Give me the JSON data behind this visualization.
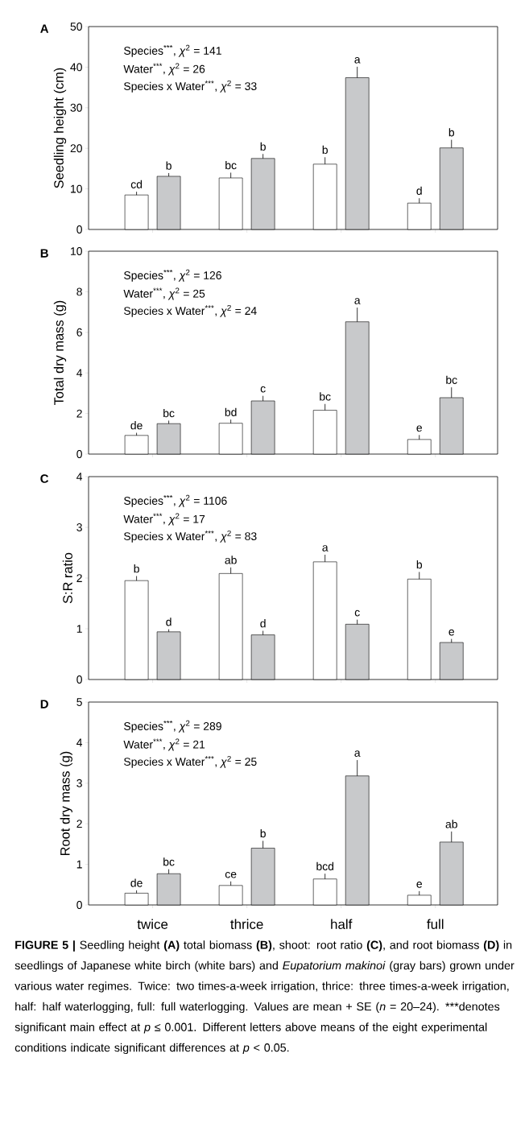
{
  "chart_data": [
    {
      "type": "bar",
      "ylabel": "Seedling height (cm)",
      "categories": [
        null,
        null,
        null,
        null
      ],
      "ylim": [
        0,
        50
      ],
      "yticks": [
        0,
        10,
        20,
        30,
        40,
        50
      ],
      "tick_labels": "y",
      "annotations": [
        "A",
        "Species$^{***}$, *χ*$^{2}$ = 141",
        "Water$^{***}$, *χ*$^{2}$ = 26",
        "Species x Water$^{***}$, *χ*$^{2}$ = 33"
      ],
      "series": [
        {
          "color": "#ffffff",
          "values": [
            8.5,
            12.7,
            16.1,
            6.5
          ],
          "errors": [
            [
              8.5,
              9.3
            ],
            [
              12.7,
              14.0
            ],
            [
              16.1,
              17.8
            ],
            [
              6.5,
              7.7
            ]
          ],
          "value_labels": [
            "cd",
            "bc",
            "b",
            "d"
          ]
        },
        {
          "color": "#c8c9cb",
          "values": [
            13.1,
            17.5,
            37.4,
            20.1
          ],
          "errors": [
            [
              13.1,
              13.9
            ],
            [
              17.5,
              18.6
            ],
            [
              37.4,
              40.1
            ],
            [
              20.1,
              22.1
            ]
          ],
          "value_labels": [
            "b",
            "b",
            "a",
            "b"
          ]
        }
      ]
    },
    {
      "type": "bar",
      "ylabel": "Total dry mass (g)",
      "categories": [
        null,
        null,
        null,
        null
      ],
      "ylim": [
        0,
        10
      ],
      "yticks": [
        0,
        2,
        4,
        6,
        8,
        10
      ],
      "tick_labels": "y",
      "annotations": [
        "B",
        "Species$^{***}$, *χ*$^{2}$ = 126",
        "Water$^{***}$, *χ*$^{2}$ = 25",
        "Species x Water$^{***}$, *χ*$^{2}$ = 24"
      ],
      "series": [
        {
          "color": "#ffffff",
          "values": [
            0.92,
            1.52,
            2.16,
            0.72
          ],
          "errors": [
            [
              0.92,
              1.05
            ],
            [
              1.52,
              1.7
            ],
            [
              2.16,
              2.47
            ],
            [
              0.72,
              0.94
            ]
          ],
          "value_labels": [
            "de",
            "bd",
            "bc",
            "e"
          ]
        },
        {
          "color": "#c8c9cb",
          "values": [
            1.5,
            2.62,
            6.52,
            2.78
          ],
          "errors": [
            [
              1.5,
              1.65
            ],
            [
              2.62,
              2.87
            ],
            [
              6.52,
              7.22
            ],
            [
              2.78,
              3.29
            ]
          ],
          "value_labels": [
            "bc",
            "c",
            "a",
            "bc"
          ]
        }
      ]
    },
    {
      "type": "bar",
      "ylabel": "S:R ratio",
      "categories": [
        null,
        null,
        null,
        null
      ],
      "ylim": [
        0,
        4
      ],
      "yticks": [
        0,
        1,
        2,
        3,
        4
      ],
      "tick_labels": "y",
      "annotations": [
        "C",
        "Species$^{***}$, *χ*$^{2}$ = 1106",
        "Water$^{***}$, *χ*$^{2}$ = 17",
        "Species x Water$^{***}$, *χ*$^{2}$ = 83"
      ],
      "series": [
        {
          "color": "#ffffff",
          "values": [
            1.95,
            2.09,
            2.32,
            1.98
          ],
          "errors": [
            [
              1.95,
              2.04
            ],
            [
              2.09,
              2.21
            ],
            [
              2.32,
              2.46
            ],
            [
              1.98,
              2.12
            ]
          ],
          "value_labels": [
            "b",
            "ab",
            "a",
            "b"
          ]
        },
        {
          "color": "#c8c9cb",
          "values": [
            0.94,
            0.88,
            1.09,
            0.73
          ],
          "errors": [
            [
              0.94,
              0.99
            ],
            [
              0.88,
              0.96
            ],
            [
              1.09,
              1.18
            ],
            [
              0.73,
              0.8
            ]
          ],
          "value_labels": [
            "d",
            "d",
            "c",
            "e"
          ]
        }
      ]
    },
    {
      "type": "bar",
      "ylabel": "Root dry mass (g)",
      "categories": [
        "twice",
        "thrice",
        "half",
        "full"
      ],
      "ylim": [
        0,
        5
      ],
      "yticks": [
        0,
        1,
        2,
        3,
        4,
        5
      ],
      "annotations": [
        "D",
        "Species$^{***}$, *χ*$^{2}$ = 289",
        "Water$^{***}$, *χ*$^{2}$ = 21",
        "Species x Water$^{***}$, *χ*$^{2}$ = 25",
        "**FIGURE 5 |** Seedling height **(A)** total biomass **(B)**, shoot: root ratio **(C)**, and root biomass **(D)** in seedlings of Japanese white birch (white bars) and *Eupatorium makinoi* (gray bars) grown under various water regimes. Twice: two times-a-week irrigation, thrice: three times-a-week irrigation, half: half waterlogging, full: full waterlogging. Values are mean + SE (*n* = 20–24). ***denotes significant main effect at *p* ≤ 0.001. Different letters above means of the eight experimental conditions indicate significant differences at *p* < 0.05."
      ],
      "series": [
        {
          "color": "#ffffff",
          "values": [
            0.29,
            0.48,
            0.64,
            0.24
          ],
          "errors": [
            [
              0.29,
              0.36
            ],
            [
              0.48,
              0.58
            ],
            [
              0.64,
              0.77
            ],
            [
              0.24,
              0.34
            ]
          ],
          "value_labels": [
            "de",
            "ce",
            "bcd",
            "e"
          ]
        },
        {
          "color": "#c8c9cb",
          "values": [
            0.77,
            1.4,
            3.18,
            1.55
          ],
          "errors": [
            [
              0.77,
              0.88
            ],
            [
              1.4,
              1.58
            ],
            [
              3.18,
              3.57
            ],
            [
              1.55,
              1.81
            ]
          ],
          "value_labels": [
            "bc",
            "b",
            "a",
            "ab"
          ]
        }
      ]
    }
  ]
}
